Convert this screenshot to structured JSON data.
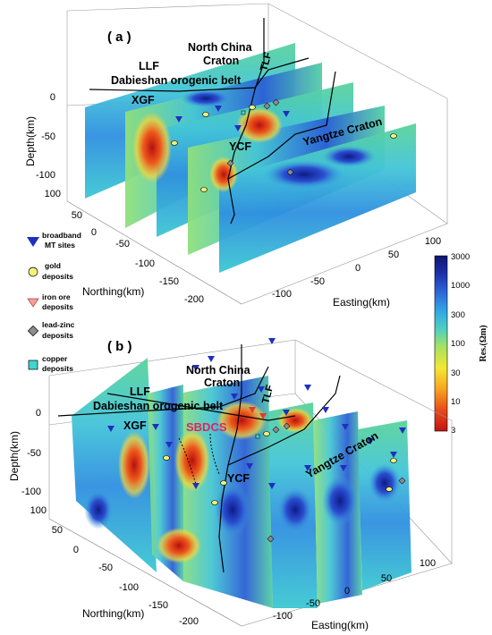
{
  "panels": [
    {
      "label": "( a )",
      "regions": {
        "north_china": [
          "North China",
          "Craton"
        ],
        "llf": "LLF",
        "tlf": "TLF",
        "dabieshan": "Dabieshan orogenic belt",
        "xgf": "XGF",
        "ycf": "YCF",
        "yangtze": "Yangtze Craton"
      },
      "depth_axis": {
        "label": "Depth(km)",
        "ticks": [
          "0",
          "-50",
          "-100"
        ]
      },
      "northing_axis": {
        "label": "Northing(km)",
        "ticks": [
          "100",
          "50",
          "0",
          "-50",
          "-100",
          "-150",
          "-200"
        ]
      },
      "easting_axis": {
        "label": "Easting(km)",
        "ticks": [
          "-100",
          "-50",
          "0",
          "50",
          "100"
        ]
      }
    },
    {
      "label": "( b )",
      "regions": {
        "north_china": [
          "North China",
          "Craton"
        ],
        "llf": "LLF",
        "tlf": "TLF",
        "dabieshan": "Dabieshan orogenic belt",
        "xgf": "XGF",
        "ycf": "YCF",
        "yangtze": "Yangtze Craton",
        "highlight": "SBDCS"
      },
      "depth_axis": {
        "label": "Depth(km)",
        "ticks": [
          "0",
          "-50",
          "-100"
        ]
      },
      "northing_axis": {
        "label": "Northing(km)",
        "ticks": [
          "100",
          "50",
          "0",
          "-50",
          "-100",
          "-150",
          "-200"
        ]
      },
      "easting_axis": {
        "label": "Easting(km)",
        "ticks": [
          "-100",
          "-50",
          "0",
          "50",
          "100"
        ]
      }
    }
  ],
  "legend": [
    {
      "symbol": "blue-triangle-icon",
      "color": "#1f2fbf",
      "lines": [
        "broadband",
        "MT sites"
      ]
    },
    {
      "symbol": "yellow-circle-icon",
      "color": "#f5f07a",
      "lines": [
        "gold",
        "deposits"
      ]
    },
    {
      "symbol": "red-triangle-icon",
      "color": "#f4a29a",
      "lines": [
        "iron ore",
        "deposits"
      ]
    },
    {
      "symbol": "gray-diamond-icon",
      "color": "#8c8c8c",
      "lines": [
        "lead-zinc",
        "deposits"
      ]
    },
    {
      "symbol": "cyan-square-icon",
      "color": "#3fd6cf",
      "lines": [
        "copper",
        "deposits"
      ]
    }
  ],
  "colorbar": {
    "title": "Res.(Ωm)",
    "ticks": [
      "3000",
      "1000",
      "300",
      "100",
      "30",
      "10",
      "3"
    ],
    "scale": "log",
    "range": [
      3,
      3000
    ],
    "colors": [
      "#c21414",
      "#ea4a1a",
      "#f7a51f",
      "#f4e735",
      "#a7e25f",
      "#4fd0c0",
      "#32a8e4",
      "#2c63d6",
      "#1d2fa8",
      "#0c1670"
    ]
  }
}
